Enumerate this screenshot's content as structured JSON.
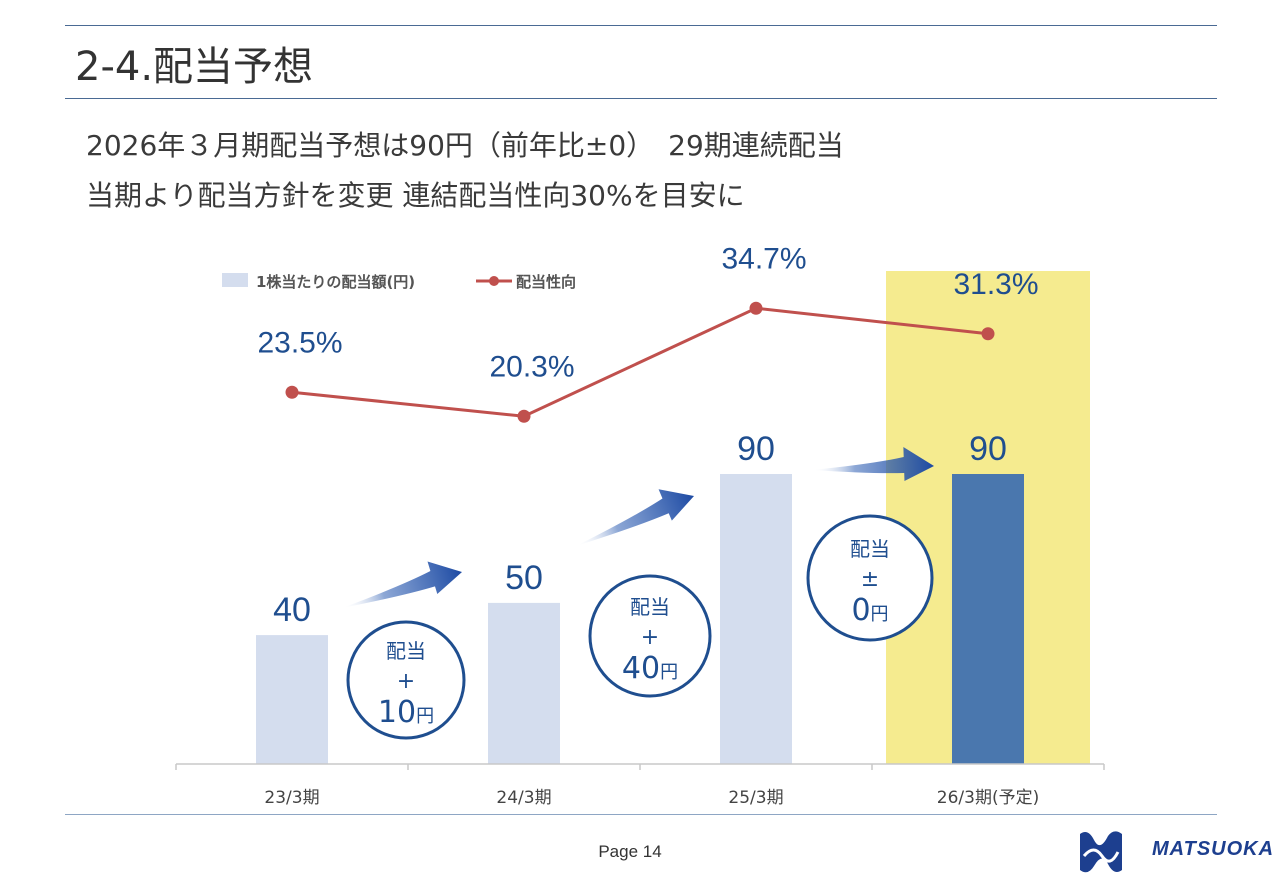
{
  "header": {
    "title": "2-4.配当予想"
  },
  "summary": {
    "line1": "2026年３月期配当予想は90円（前年比±0）　29期連続配当",
    "line2": "当期より配当方針を変更 連結配当性向30%を目安に"
  },
  "chart_data": {
    "type": "bar",
    "categories": [
      "23/3期",
      "24/3期",
      "25/3期",
      "26/3期(予定)"
    ],
    "series": [
      {
        "name": "1株当たりの配当額(円)",
        "type": "bar",
        "values": [
          40,
          50,
          90,
          90
        ],
        "labels": [
          "40",
          "50",
          "90",
          "90"
        ],
        "color": "#d4ddee",
        "highlight_color": "#4a77ae"
      },
      {
        "name": "配当性向",
        "type": "line",
        "values": [
          23.5,
          20.3,
          34.7,
          31.3
        ],
        "labels": [
          "23.5%",
          "20.3%",
          "34.7%",
          "31.3%"
        ],
        "color": "#c0504d"
      }
    ],
    "highlight_category": "26/3期(予定)",
    "highlight_band_color": "#f5eb8f",
    "annotations": [
      {
        "line1": "配当",
        "line2": "+",
        "amount": "10",
        "unit": "円"
      },
      {
        "line1": "配当",
        "line2": "+",
        "amount": "40",
        "unit": "円"
      },
      {
        "line1": "配当",
        "line2": "±",
        "amount": "0",
        "unit": "円"
      }
    ],
    "legend_position": "top-left",
    "value_label_color": "#1f4e8f"
  },
  "footer": {
    "page": "Page 14",
    "logo_text": "MATSUOKA"
  }
}
